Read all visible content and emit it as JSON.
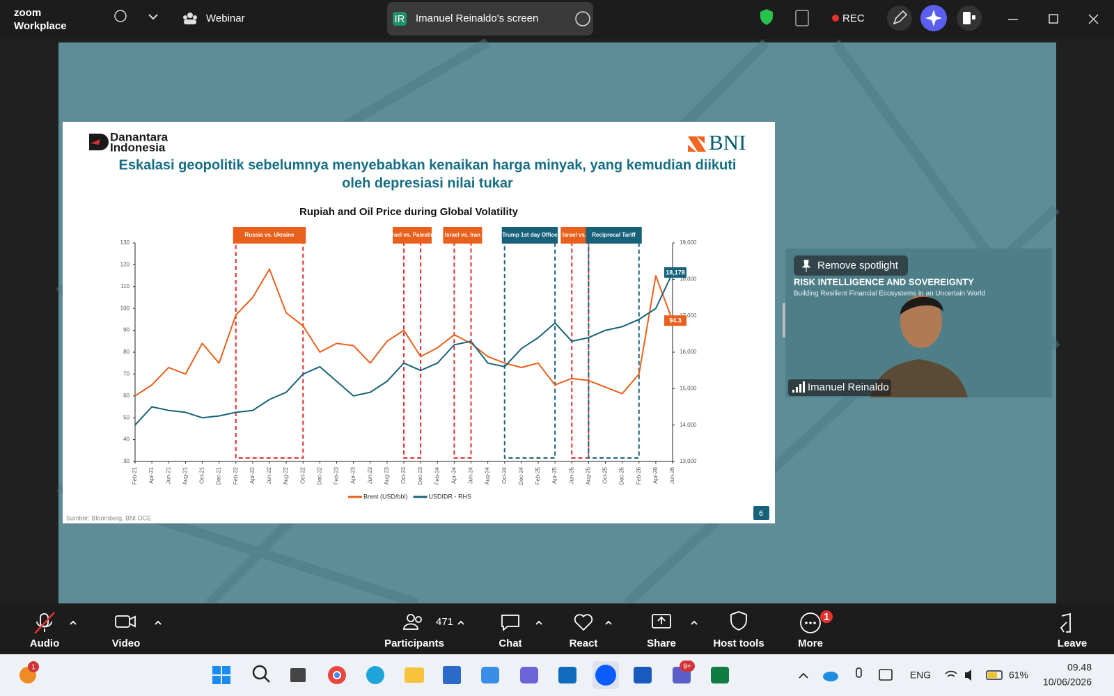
{
  "app": {
    "logo_top": "zoom",
    "logo_bottom": "Workplace",
    "webinar": "Webinar",
    "share_initials": "IR",
    "share_title": "Imanuel Reinaldo's screen",
    "rec": "REC"
  },
  "slide": {
    "brand_left_1": "Danantara",
    "brand_left_2": "Indonesia",
    "brand_right": "BNI",
    "title_line_1": "Eskalasi geopolitik sebelumnya menyebabkan kenaikan harga minyak, yang kemudian diikuti",
    "title_line_2": "oleh depresiasi nilai tukar",
    "source": "Sumber: Bloomberg, BNI OCE",
    "page_number": "6"
  },
  "chart_data": {
    "type": "line",
    "title": "Rupiah and Oil Price during Global Volatility",
    "categories": [
      "Feb-21",
      "Apr-21",
      "Jun-21",
      "Aug-21",
      "Oct-21",
      "Dec-21",
      "Feb-22",
      "Apr-22",
      "Jun-22",
      "Aug-22",
      "Oct-22",
      "Dec-22",
      "Feb-23",
      "Apr-23",
      "Jun-23",
      "Aug-23",
      "Oct-23",
      "Dec-23",
      "Feb-24",
      "Apr-24",
      "Jun-24",
      "Aug-24",
      "Oct-24",
      "Dec-24",
      "Feb-25",
      "Apr-25",
      "Jun-25",
      "Aug-25",
      "Oct-25",
      "Dec-25",
      "Feb-26",
      "Apr-26",
      "Jun-26"
    ],
    "series": [
      {
        "name": "Brent (USD/bbl)",
        "color": "#e8601c",
        "values": [
          60,
          65,
          73,
          70,
          84,
          75,
          97,
          105,
          118,
          98,
          92,
          80,
          84,
          83,
          75,
          85,
          90,
          78,
          82,
          88,
          84,
          78,
          75,
          73,
          75,
          65,
          68,
          67,
          64,
          61,
          70,
          115,
          94.3
        ],
        "value_labels": [
          null,
          null,
          null,
          null,
          null,
          null,
          null,
          null,
          null,
          null,
          null,
          null,
          null,
          null,
          null,
          null,
          null,
          null,
          null,
          null,
          null,
          null,
          null,
          null,
          null,
          null,
          null,
          null,
          null,
          null,
          null,
          null,
          "94.3"
        ]
      },
      {
        "name": "USDIDR - RHS",
        "color": "#17627a",
        "axis": "y2",
        "values": [
          14000,
          14500,
          14400,
          14350,
          14200,
          14250,
          14350,
          14400,
          14700,
          14900,
          15400,
          15600,
          15200,
          14800,
          14900,
          15200,
          15700,
          15500,
          15700,
          16200,
          16300,
          15700,
          15600,
          16100,
          16400,
          16800,
          16300,
          16400,
          16600,
          16700,
          16900,
          17200,
          18178
        ],
        "value_labels": [
          null,
          null,
          null,
          null,
          null,
          null,
          null,
          null,
          null,
          null,
          null,
          null,
          null,
          null,
          null,
          null,
          null,
          null,
          null,
          null,
          null,
          null,
          null,
          null,
          null,
          null,
          null,
          null,
          null,
          null,
          null,
          null,
          "18,178"
        ]
      }
    ],
    "ylim": [
      30,
      130
    ],
    "yticks": [
      30,
      40,
      50,
      60,
      70,
      80,
      90,
      100,
      110,
      120,
      130
    ],
    "y2lim": [
      13000,
      19000
    ],
    "y2ticks": [
      {
        "value": 13000,
        "label": "13,000"
      },
      {
        "value": 14000,
        "label": "14,000"
      },
      {
        "value": 15000,
        "label": "15,000"
      },
      {
        "value": 16000,
        "label": "16,000"
      },
      {
        "value": 17000,
        "label": "17,000"
      },
      {
        "value": 18000,
        "label": "18,000"
      },
      {
        "value": 19000,
        "label": "19,000"
      }
    ],
    "events": [
      {
        "label": "Russia vs. Ukraine",
        "start": "Feb-22",
        "end": "Oct-22",
        "color": "#e8601c",
        "line_color": "#e03030"
      },
      {
        "label": "Israel vs. Palestine",
        "start": "Oct-23",
        "end": "Dec-23",
        "color": "#e8601c",
        "line_color": "#e03030"
      },
      {
        "label": "Israel vs. Iran",
        "start": "Apr-24",
        "end": "Jun-24",
        "color": "#e8601c",
        "line_color": "#e03030"
      },
      {
        "label": "Trump 1st day Office",
        "start": "Oct-24",
        "end": "Apr-25",
        "color": "#17627a",
        "line_color": "#17627a"
      },
      {
        "label": "Israel vs. Iran",
        "start": "Jun-25",
        "end": "Aug-25",
        "color": "#e8601c",
        "line_color": "#e03030"
      },
      {
        "label": "Reciprocal Tariff",
        "start": "Aug-25",
        "end": "Feb-26",
        "color": "#17627a",
        "line_color": "#17627a"
      }
    ]
  },
  "video": {
    "spotlight": "Remove spotlight",
    "banner_title": "RISK INTELLIGENCE AND SOVEREIGNTY",
    "banner_subtitle": "Building Resilient Financial Ecosystems in an Uncertain World",
    "name": "Imanuel Reinaldo"
  },
  "toolbar": {
    "audio": "Audio",
    "video": "Video",
    "participant_count": "471",
    "participants": "Participants",
    "chat": "Chat",
    "react": "React",
    "share": "Share",
    "host_tools": "Host tools",
    "more": "More",
    "more_badge": "1",
    "leave": "Leave"
  },
  "taskbar": {
    "app_badge": "1",
    "teams_badge": "9+",
    "language": "ENG",
    "battery": "61%",
    "time": "09.48",
    "date": "10/06/2026"
  }
}
